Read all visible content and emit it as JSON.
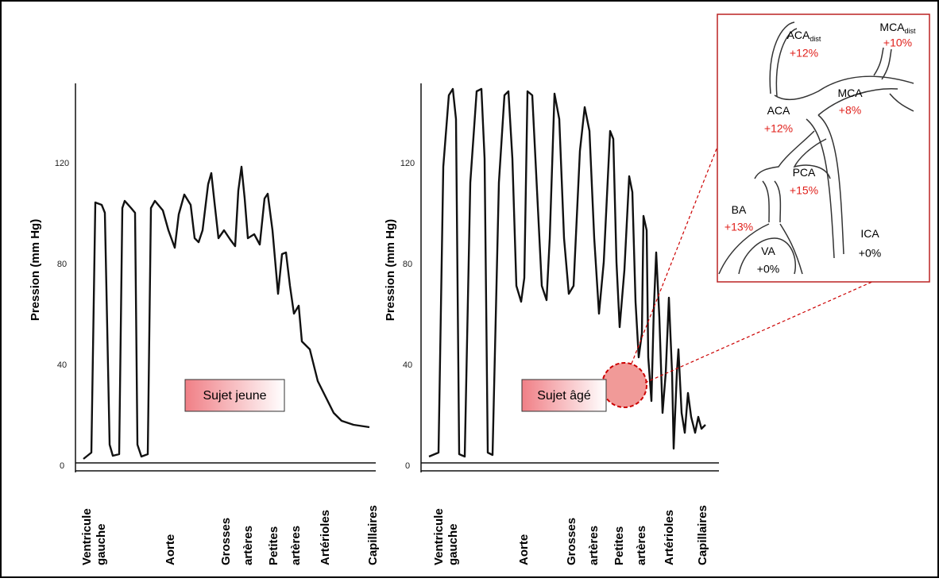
{
  "panels": [
    {
      "y_label": "Pression (mm Hg)",
      "y_ticks": [
        0,
        40,
        80,
        120
      ],
      "categories": [
        [
          "Ventricule",
          "gauche"
        ],
        [
          "Aorte"
        ],
        [
          "Grosses",
          "artères"
        ],
        [
          "Petites",
          "artères"
        ],
        [
          "Artérioles"
        ],
        [
          "Capillaires"
        ]
      ],
      "label": "Sujet jeune"
    },
    {
      "y_label": "Pression (mm Hg)",
      "y_ticks": [
        0,
        40,
        80,
        120
      ],
      "categories": [
        [
          "Ventricule",
          "gauche"
        ],
        [
          "Aorte"
        ],
        [
          "Grosses",
          "artères"
        ],
        [
          "Petites",
          "artères"
        ],
        [
          "Artérioles"
        ],
        [
          "Capillaires"
        ]
      ],
      "label": "Sujet âgé"
    }
  ],
  "inset": {
    "vessels": [
      {
        "name": "ACA",
        "sub": "dist",
        "change": "+12%"
      },
      {
        "name": "MCA",
        "sub": "dist",
        "change": "+10%"
      },
      {
        "name": "MCA",
        "change": "+8%"
      },
      {
        "name": "ACA",
        "change": "+12%"
      },
      {
        "name": "PCA",
        "change": "+15%"
      },
      {
        "name": "BA",
        "change": "+13%"
      },
      {
        "name": "VA",
        "change": "+0%"
      },
      {
        "name": "ICA",
        "change": "+0%"
      }
    ]
  }
}
